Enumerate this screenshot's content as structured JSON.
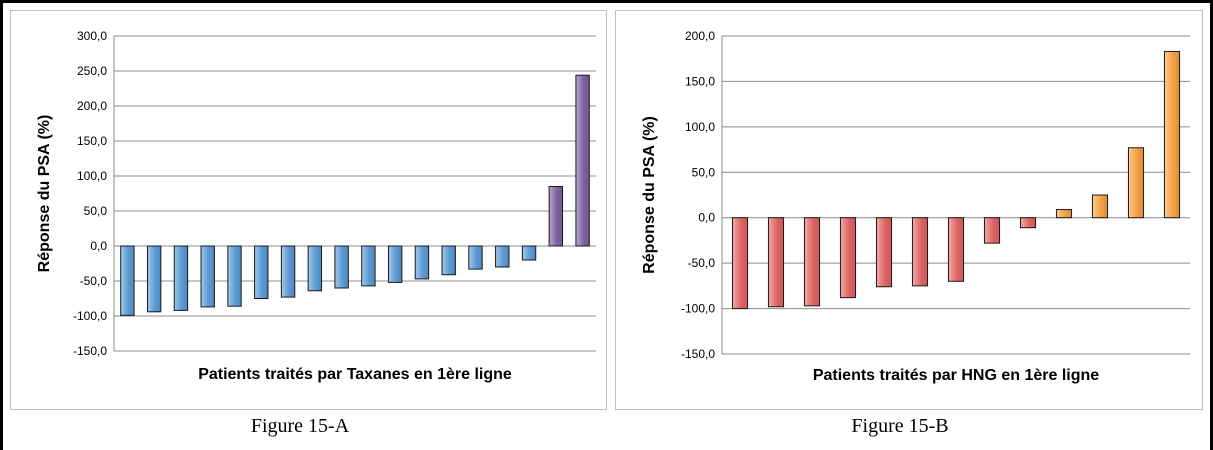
{
  "captions": {
    "a": "Figure 15-A",
    "b": "Figure 15-B"
  },
  "chart_data": [
    {
      "type": "bar",
      "xlabel": "Patients traités par Taxanes en 1ère ligne",
      "ylabel": "Réponse du  PSA (%)",
      "ylim": [
        -150,
        300
      ],
      "yticks": [
        300,
        250,
        200,
        150,
        100,
        50,
        0,
        -50,
        -100,
        -150
      ],
      "ytick_labels": [
        "300,0",
        "250,0",
        "200,0",
        "150,0",
        "100,0",
        "50,0",
        "0,0",
        "-50,0",
        "-100,0",
        "-150,0"
      ],
      "grid": true,
      "values": [
        -99,
        -94,
        -92,
        -87,
        -86,
        -75,
        -73,
        -64,
        -60,
        -57,
        -52,
        -47,
        -41,
        -33,
        -30,
        -20,
        85,
        244
      ],
      "colors": [
        "#5b9bd5",
        "#5b9bd5",
        "#5b9bd5",
        "#5b9bd5",
        "#5b9bd5",
        "#5b9bd5",
        "#5b9bd5",
        "#5b9bd5",
        "#5b9bd5",
        "#5b9bd5",
        "#5b9bd5",
        "#5b9bd5",
        "#5b9bd5",
        "#5b9bd5",
        "#5b9bd5",
        "#5b9bd5",
        "#8064a2",
        "#8064a2"
      ]
    },
    {
      "type": "bar",
      "xlabel": "Patients traités par HNG en 1ère ligne",
      "ylabel": "Réponse du PSA (%)",
      "ylim": [
        -150,
        200
      ],
      "yticks": [
        200,
        150,
        100,
        50,
        0,
        -50,
        -100,
        -150
      ],
      "ytick_labels": [
        "200,0",
        "150,0",
        "100,0",
        "50,0",
        "0,0",
        "-50,0",
        "-100,0",
        "-150,0"
      ],
      "grid": true,
      "values": [
        -100,
        -98,
        -97,
        -88,
        -76,
        -75,
        -70,
        -28,
        -11,
        9,
        25,
        77,
        183
      ],
      "colors": [
        "#e06666",
        "#e06666",
        "#e06666",
        "#e06666",
        "#e06666",
        "#e06666",
        "#e06666",
        "#e06666",
        "#e06666",
        "#f5a142",
        "#f5a142",
        "#f5a142",
        "#f5a142"
      ]
    }
  ]
}
